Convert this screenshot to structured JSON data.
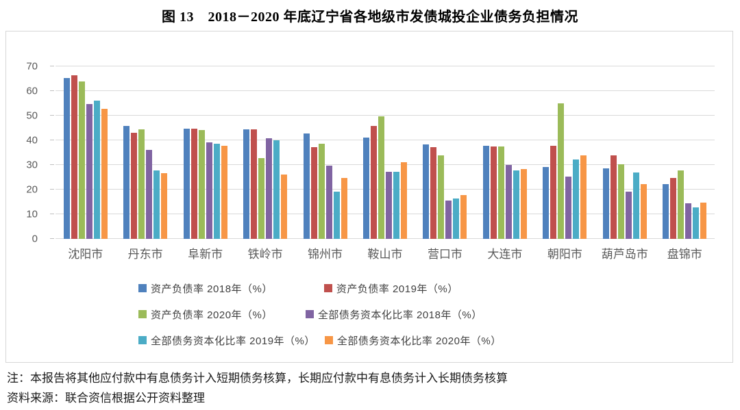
{
  "title": "图 13　2018－2020 年底辽宁省各地级市发债城投企业债务负担情况",
  "chart_data": {
    "type": "bar",
    "title": "图 13　2018－2020 年底辽宁省各地级市发债城投企业债务负担情况",
    "xlabel": "",
    "ylabel": "",
    "ylim": [
      0,
      70
    ],
    "yticks": [
      0,
      10,
      20,
      30,
      40,
      50,
      60,
      70
    ],
    "grid": "horizontal",
    "legend_position": "bottom",
    "categories": [
      "沈阳市",
      "丹东市",
      "阜新市",
      "铁岭市",
      "锦州市",
      "鞍山市",
      "营口市",
      "大连市",
      "朝阳市",
      "葫芦岛市",
      "盘锦市"
    ],
    "series": [
      {
        "name": "资产负债率 2018年（%）",
        "color": "#4F81BD",
        "values": [
          65.4,
          45.9,
          44.8,
          44.5,
          42.8,
          41.1,
          38.3,
          37.9,
          29.3,
          28.6,
          22.3
        ]
      },
      {
        "name": "资产负债率 2019年（%）",
        "color": "#C0504D",
        "values": [
          66.4,
          43.0,
          44.7,
          44.5,
          37.1,
          45.8,
          37.1,
          37.4,
          37.7,
          34.0,
          24.7
        ]
      },
      {
        "name": "资产负债率 2020年（%）",
        "color": "#9BBB59",
        "values": [
          63.8,
          44.4,
          44.2,
          32.8,
          38.7,
          49.6,
          33.9,
          37.6,
          55.0,
          30.2,
          27.9
        ]
      },
      {
        "name": "全部债务资本化比率 2018年（%）",
        "color": "#8064A2",
        "values": [
          54.6,
          36.1,
          39.1,
          40.8,
          29.8,
          27.3,
          15.6,
          30.0,
          25.4,
          19.3,
          14.4
        ]
      },
      {
        "name": "全部债务资本化比率 2019年（%）",
        "color": "#4BACC6",
        "values": [
          56.0,
          27.9,
          38.7,
          40.0,
          19.3,
          27.1,
          16.5,
          27.7,
          32.1,
          26.9,
          12.9
        ]
      },
      {
        "name": "全部债务资本化比率 2020年（%）",
        "color": "#F79646",
        "values": [
          52.9,
          26.7,
          37.9,
          26.2,
          24.8,
          31.0,
          17.9,
          28.4,
          33.9,
          22.3,
          14.6
        ]
      }
    ]
  },
  "notes": {
    "note": "注：本报告将其他应付款中有息债务计入短期债务核算，长期应付款中有息债务计入长期债务核算",
    "source": "资料来源：联合资信根据公开资料整理"
  }
}
